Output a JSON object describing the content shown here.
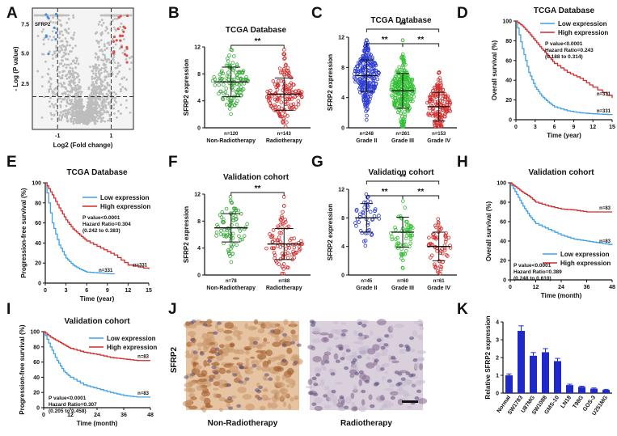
{
  "panels": [
    {
      "id": "A",
      "type": "volcano",
      "xlabel": "Log2 (Fold change)",
      "ylabel": "- Log (P value)",
      "yticks": [
        "2.5",
        "5.0",
        "7.5"
      ],
      "xticks": [
        "-1",
        "1"
      ],
      "gene_label": "SFRP2"
    },
    {
      "id": "B",
      "type": "scatter_dot",
      "title": "TCGA Database",
      "ylabel": "SFRP2 expression",
      "yticks": [
        "0",
        "4",
        "8",
        "12"
      ],
      "sig": "**",
      "groups": [
        {
          "name": "Non-Radiotherapy",
          "n": "n=120",
          "color": "#3aa83a",
          "mean": 6.8,
          "sd": 2.2,
          "count": 120
        },
        {
          "name": "Radiotherapy",
          "n": "n=143",
          "color": "#d42a2a",
          "mean": 5.0,
          "sd": 2.4,
          "count": 143
        }
      ]
    },
    {
      "id": "C",
      "type": "scatter_dot",
      "title": "TCGA Database",
      "ylabel": "SFRP2 expression",
      "yticks": [
        "0",
        "4",
        "8",
        "12"
      ],
      "sig": "**",
      "groups": [
        {
          "name": "Grade II",
          "n": "n=248",
          "color": "#2a3ad4",
          "mean": 6.9,
          "sd": 2.1,
          "count": 248
        },
        {
          "name": "Grade III",
          "n": "n=261",
          "color": "#2fbf2f",
          "mean": 4.9,
          "sd": 2.3,
          "count": 261
        },
        {
          "name": "Grade IV",
          "n": "n=153",
          "color": "#d42a2a",
          "mean": 2.8,
          "sd": 1.9,
          "count": 153
        }
      ]
    },
    {
      "id": "D",
      "type": "km",
      "title": "TCGA Database",
      "ylabel": "Overall survival (%)",
      "xlabel": "Time (year)",
      "xticks": [
        "0",
        "3",
        "6",
        "9",
        "12",
        "15"
      ],
      "yticks": [
        "0",
        "20",
        "40",
        "60",
        "80",
        "100"
      ],
      "legend": [
        "Low expression",
        "High expression"
      ],
      "stats": [
        "P value<0.0001",
        "Hazard Ratio=0.243",
        "(0.188 to 0.314)"
      ],
      "n_high": "n=331",
      "n_low": "n=331"
    },
    {
      "id": "E",
      "type": "km",
      "title": "TCGA Database",
      "ylabel": "Progression-free survival (%)",
      "xlabel": "Time (year)",
      "xticks": [
        "0",
        "3",
        "6",
        "9",
        "12",
        "15"
      ],
      "yticks": [
        "0",
        "20",
        "40",
        "60",
        "80",
        "100"
      ],
      "legend": [
        "Low expression",
        "High expression"
      ],
      "stats": [
        "P value<0.0001",
        "Hazard Ratio=0.304",
        "(0.242 to 0.383)"
      ],
      "n_high": "n=331",
      "n_low": "n=331"
    },
    {
      "id": "F",
      "type": "scatter_dot",
      "title": "Validation cohort",
      "ylabel": "SFRP2 expression",
      "yticks": [
        "0",
        "4",
        "8",
        "12"
      ],
      "sig": "**",
      "groups": [
        {
          "name": "Non-Radiotherapy",
          "n": "n=78",
          "color": "#3aa83a",
          "mean": 7.0,
          "sd": 2.1,
          "count": 78
        },
        {
          "name": "Radiotherapy",
          "n": "n=88",
          "color": "#d42a2a",
          "mean": 4.6,
          "sd": 2.3,
          "count": 88
        }
      ]
    },
    {
      "id": "G",
      "type": "scatter_dot",
      "title": "Validation cohort",
      "ylabel": "SFRP2 expression",
      "yticks": [
        "0",
        "4",
        "8",
        "12"
      ],
      "sig": "**",
      "groups": [
        {
          "name": "Grade II",
          "n": "n=45",
          "color": "#2a3ad4",
          "mean": 8.0,
          "sd": 2.0,
          "count": 45
        },
        {
          "name": "Grade III",
          "n": "n=60",
          "color": "#2fbf2f",
          "mean": 6.0,
          "sd": 2.1,
          "count": 60
        },
        {
          "name": "Grade IV",
          "n": "n=61",
          "color": "#d42a2a",
          "mean": 4.0,
          "sd": 2.0,
          "count": 61
        }
      ]
    },
    {
      "id": "H",
      "type": "km",
      "title": "Validation cohort",
      "ylabel": "Overall survival (%)",
      "xlabel": "Time (month)",
      "xticks": [
        "0",
        "12",
        "24",
        "36",
        "48"
      ],
      "yticks": [
        "0",
        "20",
        "40",
        "60",
        "80",
        "100"
      ],
      "legend": [
        "Low expression",
        "High expression"
      ],
      "stats": [
        "P value<0.0001",
        "Hazard Ratio=0.389",
        "(0.248 to 0.610)"
      ],
      "n_high": "n=83",
      "n_low": "n=83"
    },
    {
      "id": "I",
      "type": "km",
      "title": "Validation cohort",
      "ylabel": "Progression-free survival (%)",
      "xlabel": "Time (month)",
      "xticks": [
        "0",
        "12",
        "24",
        "36",
        "48"
      ],
      "yticks": [
        "0",
        "20",
        "40",
        "60",
        "80",
        "100"
      ],
      "legend": [
        "Low expression",
        "High expression"
      ],
      "stats": [
        "P value<0.0001",
        "Hazard Ratio=0.307",
        "(0.205 to 0.458)"
      ],
      "n_high": "n=83",
      "n_low": "n=83"
    },
    {
      "id": "J",
      "type": "ihc",
      "row_label": "SFRP2",
      "captions": [
        "Non-Radiotherapy",
        "Radiotherapy"
      ]
    },
    {
      "id": "K",
      "type": "bar",
      "ylabel": "Relative SFRP2 expression",
      "yticks": [
        "0",
        "1",
        "2",
        "3",
        "4"
      ]
    }
  ],
  "chart_data": [
    {
      "type": "bar",
      "panel": "K",
      "title": "",
      "ylabel": "Relative SFRP2 expression",
      "ylim": [
        0,
        4
      ],
      "categories": [
        "Normal",
        "SW1783",
        "U87MG",
        "SW1088",
        "GMS-10",
        "LN18",
        "T98G",
        "GOS-3",
        "U251MG"
      ],
      "values": [
        1.0,
        3.5,
        2.1,
        2.3,
        1.8,
        0.45,
        0.35,
        0.25,
        0.18
      ],
      "errors": [
        0.08,
        0.28,
        0.18,
        0.2,
        0.15,
        0.05,
        0.04,
        0.04,
        0.03
      ],
      "color": "#1f28c8"
    },
    {
      "type": "line",
      "panel": "D",
      "title": "TCGA Database",
      "xlabel": "Time (year)",
      "ylabel": "Overall survival (%)",
      "xlim": [
        0,
        15
      ],
      "ylim": [
        0,
        100
      ],
      "series": [
        {
          "name": "Low expression",
          "color": "#3fa0e8",
          "x": [
            0,
            1,
            2,
            3,
            4,
            5,
            6,
            8,
            10,
            12,
            15
          ],
          "y": [
            100,
            72,
            48,
            33,
            24,
            18,
            13,
            9,
            7,
            6,
            5
          ]
        },
        {
          "name": "High expression",
          "color": "#d42a2a",
          "x": [
            0,
            1,
            2,
            3,
            4,
            5,
            6,
            8,
            10,
            12,
            15
          ],
          "y": [
            100,
            95,
            88,
            80,
            72,
            65,
            57,
            48,
            42,
            33,
            22
          ]
        }
      ]
    },
    {
      "type": "line",
      "panel": "E",
      "title": "TCGA Database",
      "xlabel": "Time (year)",
      "ylabel": "Progression-free survival (%)",
      "xlim": [
        0,
        15
      ],
      "ylim": [
        0,
        100
      ],
      "series": [
        {
          "name": "Low expression",
          "color": "#3fa0e8",
          "x": [
            0,
            1,
            2,
            3,
            4,
            5,
            6,
            8,
            10
          ],
          "y": [
            100,
            60,
            38,
            25,
            18,
            14,
            11,
            10,
            9
          ]
        },
        {
          "name": "High expression",
          "color": "#d42a2a",
          "x": [
            0,
            1,
            2,
            3,
            4,
            5,
            6,
            8,
            10,
            12,
            15
          ],
          "y": [
            100,
            88,
            75,
            63,
            54,
            48,
            42,
            35,
            28,
            18,
            14
          ]
        }
      ]
    },
    {
      "type": "line",
      "panel": "H",
      "title": "Validation cohort",
      "xlabel": "Time (month)",
      "ylabel": "Overall survival (%)",
      "xlim": [
        0,
        48
      ],
      "ylim": [
        0,
        100
      ],
      "series": [
        {
          "name": "Low expression",
          "color": "#3fa0e8",
          "x": [
            0,
            3,
            6,
            9,
            12,
            18,
            24,
            30,
            36,
            42,
            48
          ],
          "y": [
            100,
            88,
            76,
            66,
            58,
            52,
            46,
            42,
            40,
            38,
            36
          ]
        },
        {
          "name": "High expression",
          "color": "#d42a2a",
          "x": [
            0,
            3,
            6,
            9,
            12,
            18,
            24,
            30,
            36,
            42,
            48
          ],
          "y": [
            100,
            95,
            90,
            86,
            80,
            76,
            73,
            72,
            70,
            70,
            70
          ]
        }
      ]
    },
    {
      "type": "line",
      "panel": "I",
      "title": "Validation cohort",
      "xlabel": "Time (month)",
      "ylabel": "Progression-free survival (%)",
      "xlim": [
        0,
        48
      ],
      "ylim": [
        0,
        100
      ],
      "series": [
        {
          "name": "Low expression",
          "color": "#3fa0e8",
          "x": [
            0,
            3,
            6,
            9,
            12,
            18,
            24,
            30,
            36,
            42,
            48
          ],
          "y": [
            100,
            80,
            62,
            48,
            40,
            30,
            25,
            20,
            16,
            14,
            14
          ]
        },
        {
          "name": "High expression",
          "color": "#d42a2a",
          "x": [
            0,
            3,
            6,
            9,
            12,
            18,
            24,
            30,
            36,
            42,
            48
          ],
          "y": [
            100,
            93,
            88,
            83,
            78,
            73,
            70,
            66,
            64,
            62,
            62
          ]
        }
      ]
    }
  ]
}
